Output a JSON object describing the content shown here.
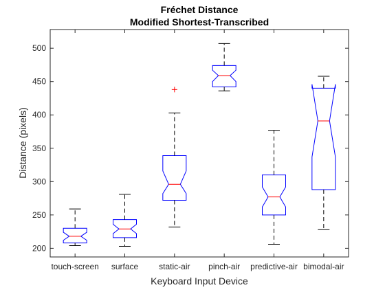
{
  "chart_data": {
    "type": "box",
    "title": "Fréchet Distance",
    "subtitle": "Modified Shortest-Transcribed",
    "xlabel": "Keyboard Input Device",
    "ylabel": "Distance (pixels)",
    "ylim": [
      187,
      528
    ],
    "yticks": [
      200,
      250,
      300,
      350,
      400,
      450,
      500
    ],
    "ytick_labels": [
      "200",
      "250",
      "300",
      "350",
      "400",
      "450",
      "500"
    ],
    "grid": false,
    "notched": true,
    "colors": {
      "box": "#0000ff",
      "median": "#ff0000",
      "whisker": "#000000",
      "outlier": "#ff0000",
      "axis": "#262626"
    },
    "categories": [
      "touch-screen",
      "surface",
      "static-air",
      "pinch-air",
      "predictive-air",
      "bimodal-air"
    ],
    "boxes": [
      {
        "category": "touch-screen",
        "whisker_low": 204,
        "q1": 208,
        "notch_low": 212,
        "median": 218,
        "notch_high": 224,
        "q3": 230,
        "whisker_high": 259,
        "outliers": []
      },
      {
        "category": "surface",
        "whisker_low": 203,
        "q1": 216,
        "notch_low": 222,
        "median": 229,
        "notch_high": 236,
        "q3": 243,
        "whisker_high": 281,
        "outliers": []
      },
      {
        "category": "static-air",
        "whisker_low": 232,
        "q1": 272,
        "notch_low": 282,
        "median": 296,
        "notch_high": 316,
        "q3": 339,
        "whisker_high": 403,
        "outliers": [
          438
        ]
      },
      {
        "category": "pinch-air",
        "whisker_low": 436,
        "q1": 442,
        "notch_low": 450,
        "median": 459,
        "notch_high": 467,
        "q3": 474,
        "whisker_high": 507,
        "outliers": []
      },
      {
        "category": "predictive-air",
        "whisker_low": 206,
        "q1": 250,
        "notch_low": 262,
        "median": 277,
        "notch_high": 292,
        "q3": 310,
        "whisker_high": 377,
        "outliers": []
      },
      {
        "category": "bimodal-air",
        "whisker_low": 228,
        "q1": 288,
        "notch_low": 337,
        "median": 391,
        "notch_high": 446,
        "q3": 440,
        "whisker_high": 458,
        "outliers": []
      }
    ]
  }
}
